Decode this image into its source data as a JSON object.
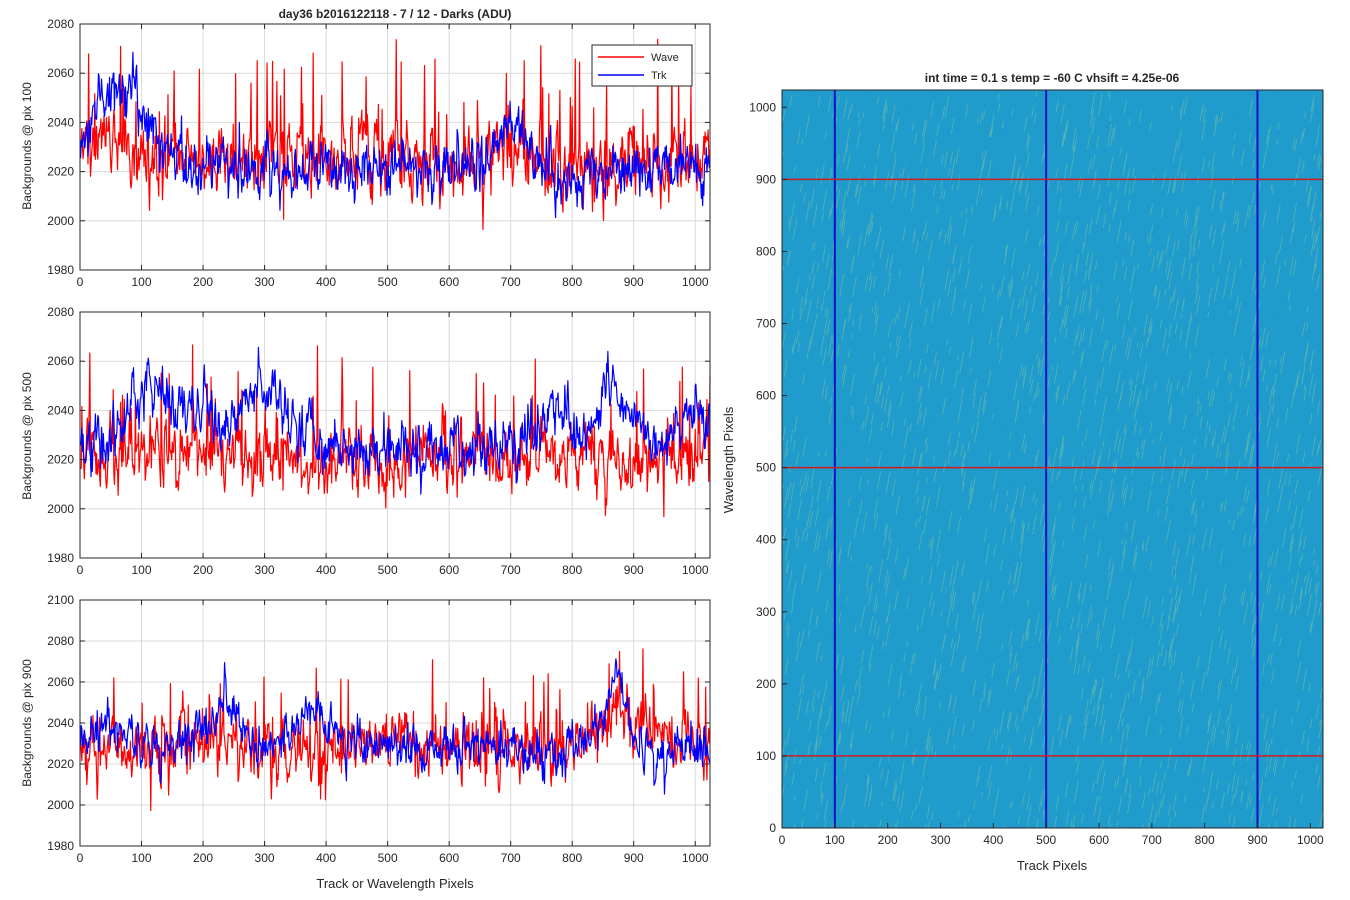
{
  "figure_title": "day36 b2016122118 - 7 / 12 - Darks (ADU)",
  "colors": {
    "wave": "#ff0000",
    "trk": "#0000ff",
    "grid": "#d9d9d9",
    "axis": "#262626",
    "image_base": "#1f9bcc",
    "image_streak": "#7cc4a6",
    "marker_row": "#d21c1c",
    "marker_col": "#1010c8"
  },
  "chart_data": [
    {
      "type": "line",
      "title": "day36 b2016122118 - 7 / 12 - Darks (ADU)",
      "xlabel": "",
      "ylabel": "Backgrounds @ pix 100",
      "xlim": [
        0,
        1024
      ],
      "ylim": [
        1980,
        2080
      ],
      "xticks": [
        0,
        100,
        200,
        300,
        400,
        500,
        600,
        700,
        800,
        900,
        1000
      ],
      "yticks": [
        1980,
        2000,
        2020,
        2040,
        2060,
        2080
      ],
      "grid": true,
      "legend": "top-right",
      "series": [
        {
          "name": "Wave",
          "color": "#ff0000",
          "baseline": 2025,
          "noise": 8,
          "spike_rate": 0.06,
          "spike_amp": 38,
          "features": [
            [
              45,
              2032,
              30
            ],
            [
              700,
              2028,
              25
            ]
          ]
        },
        {
          "name": "Trk",
          "color": "#0000ff",
          "baseline": 2021,
          "noise": 6,
          "spike_rate": 0.01,
          "spike_amp": 14,
          "features": [
            [
              55,
              2048,
              35
            ],
            [
              110,
              2033,
              40
            ],
            [
              700,
              2045,
              20
            ]
          ]
        }
      ]
    },
    {
      "type": "line",
      "title": "",
      "xlabel": "",
      "ylabel": "Backgrounds @ pix 500",
      "xlim": [
        0,
        1024
      ],
      "ylim": [
        1980,
        2080
      ],
      "xticks": [
        0,
        100,
        200,
        300,
        400,
        500,
        600,
        700,
        800,
        900,
        1000
      ],
      "yticks": [
        1980,
        2000,
        2020,
        2040,
        2060,
        2080
      ],
      "grid": true,
      "legend": "none",
      "series": [
        {
          "name": "Wave",
          "color": "#ff0000",
          "baseline": 2021,
          "noise": 7,
          "spike_rate": 0.06,
          "spike_amp": 38,
          "features": []
        },
        {
          "name": "Trk",
          "color": "#0000ff",
          "baseline": 2024,
          "noise": 6,
          "spike_rate": 0.01,
          "spike_amp": 14,
          "features": [
            [
              110,
              2050,
              30
            ],
            [
              200,
              2040,
              25
            ],
            [
              300,
              2052,
              35
            ],
            [
              770,
              2045,
              25
            ],
            [
              870,
              2050,
              25
            ],
            [
              990,
              2040,
              30
            ]
          ]
        }
      ]
    },
    {
      "type": "line",
      "title": "",
      "xlabel": "Track or Wavelength Pixels",
      "ylabel": "Backgrounds @ pix 900",
      "xlim": [
        0,
        1024
      ],
      "ylim": [
        1980,
        2100
      ],
      "xticks": [
        0,
        100,
        200,
        300,
        400,
        500,
        600,
        700,
        800,
        900,
        1000
      ],
      "yticks": [
        1980,
        2000,
        2020,
        2040,
        2060,
        2080,
        2100
      ],
      "grid": true,
      "legend": "none",
      "series": [
        {
          "name": "Wave",
          "color": "#ff0000",
          "baseline": 2028,
          "noise": 8,
          "spike_rate": 0.06,
          "spike_amp": 36,
          "features": [
            [
              880,
              2042,
              40
            ]
          ]
        },
        {
          "name": "Trk",
          "color": "#0000ff",
          "baseline": 2027,
          "noise": 6,
          "spike_rate": 0.01,
          "spike_amp": 14,
          "features": [
            [
              50,
              2038,
              30
            ],
            [
              230,
              2045,
              35
            ],
            [
              380,
              2045,
              30
            ],
            [
              870,
              2060,
              15
            ]
          ]
        }
      ]
    },
    {
      "type": "heatmap",
      "title": "int time = 0.1 s   temp = -60 C   vhsift = 4.25e-06",
      "xlabel": "Track Pixels",
      "ylabel": "Wavelength Pixels",
      "xlim": [
        0,
        1024
      ],
      "ylim": [
        0,
        1024
      ],
      "xticks": [
        0,
        100,
        200,
        300,
        400,
        500,
        600,
        700,
        800,
        900,
        1000
      ],
      "yticks": [
        0,
        100,
        200,
        300,
        400,
        500,
        600,
        700,
        800,
        900,
        1000
      ],
      "grid": false,
      "markers": {
        "rows": [
          100,
          500,
          900
        ],
        "row_color": "#d21c1c",
        "cols": [
          100,
          500,
          900
        ],
        "col_color": "#1010c8"
      }
    }
  ]
}
